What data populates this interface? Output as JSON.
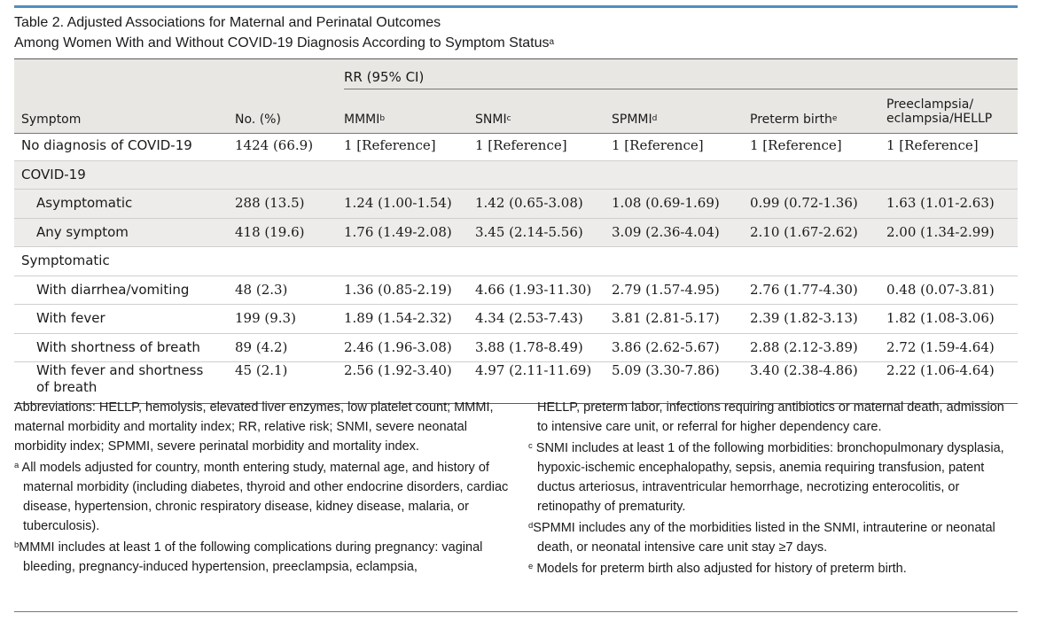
{
  "title": {
    "line1": "Table 2. Adjusted Associations for Maternal and Perinatal Outcomes",
    "line2": "Among Women With and Without COVID-19 Diagnosis According to Symptom Status",
    "line2_sup": "a"
  },
  "header": {
    "rr_label": "RR (95% CI)",
    "symptom": "Symptom",
    "no_pct": "No. (%)",
    "mmmi": "MMMI",
    "mmmi_sup": "b",
    "snmi": "SNMI",
    "snmi_sup": "c",
    "spmmi": "SPMMI",
    "spmmi_sup": "d",
    "preterm": "Preterm birth",
    "preterm_sup": "e",
    "preecl_line1": "Preeclampsia/",
    "preecl_line2": "eclampsia/HELLP"
  },
  "rows": [
    {
      "symptom": "No diagnosis of COVID-19",
      "no": "1424 (66.9)",
      "mmmi": "1 [Reference]",
      "snmi": "1 [Reference]",
      "spmmi": "1 [Reference]",
      "preterm": "1 [Reference]",
      "preecl": "1 [Reference]"
    },
    {
      "symptom": "COVID-19"
    },
    {
      "symptom": "Asymptomatic",
      "no": "288 (13.5)",
      "mmmi": "1.24 (1.00-1.54)",
      "snmi": "1.42 (0.65-3.08)",
      "spmmi": "1.08 (0.69-1.69)",
      "preterm": "0.99 (0.72-1.36)",
      "preecl": "1.63 (1.01-2.63)"
    },
    {
      "symptom": "Any symptom",
      "no": "418 (19.6)",
      "mmmi": "1.76 (1.49-2.08)",
      "snmi": "3.45 (2.14-5.56)",
      "spmmi": "3.09 (2.36-4.04)",
      "preterm": "2.10 (1.67-2.62)",
      "preecl": "2.00 (1.34-2.99)"
    },
    {
      "symptom": "Symptomatic"
    },
    {
      "symptom": "With diarrhea/vomiting",
      "no": "48 (2.3)",
      "mmmi": "1.36 (0.85-2.19)",
      "snmi": "4.66 (1.93-11.30)",
      "spmmi": "2.79 (1.57-4.95)",
      "preterm": "2.76 (1.77-4.30)",
      "preecl": "0.48 (0.07-3.81)"
    },
    {
      "symptom": "With fever",
      "no": "199 (9.3)",
      "mmmi": "1.89 (1.54-2.32)",
      "snmi": "4.34 (2.53-7.43)",
      "spmmi": "3.81 (2.81-5.17)",
      "preterm": "2.39 (1.82-3.13)",
      "preecl": "1.82 (1.08-3.06)"
    },
    {
      "symptom": "With shortness of breath",
      "no": "89 (4.2)",
      "mmmi": "2.46 (1.96-3.08)",
      "snmi": "3.88 (1.78-8.49)",
      "spmmi": "3.86 (2.62-5.67)",
      "preterm": "2.88 (2.12-3.89)",
      "preecl": "2.72 (1.59-4.64)"
    },
    {
      "symptom": "With fever and shortness of breath",
      "no": "45 (2.1)",
      "mmmi": "2.56 (1.92-3.40)",
      "snmi": "4.97 (2.11-11.69)",
      "spmmi": "5.09 (3.30-7.86)",
      "preterm": "3.40 (2.38-4.86)",
      "preecl": "2.22 (1.06-4.64)"
    }
  ],
  "notes": {
    "abbrev": "Abbreviations: HELLP, hemolysis, elevated liver enzymes, low platelet count; MMMI, maternal morbidity and mortality index; RR, relative risk; SNMI, severe neonatal morbidity index; SPMMI, severe perinatal morbidity and mortality index.",
    "a_sup": "a",
    "a": "All models adjusted for country, month entering study, maternal age, and history of maternal morbidity (including diabetes, thyroid and other endocrine disorders, cardiac disease, hypertension, chronic respiratory disease, kidney disease, malaria, or tuberculosis).",
    "b_sup": "b",
    "b": "MMMI includes at least 1 of the following complications during pregnancy: vaginal bleeding, pregnancy-induced hypertension, preeclampsia, eclampsia,",
    "b_cont": "HELLP, preterm labor, infections requiring antibiotics or maternal death, admission to intensive care unit, or referral for higher dependency care.",
    "c_sup": "c",
    "c": "SNMI includes at least 1 of the following morbidities: bronchopulmonary dysplasia, hypoxic-ischemic encephalopathy, sepsis, anemia requiring transfusion, patent ductus arteriosus, intraventricular hemorrhage, necrotizing enterocolitis, or retinopathy of prematurity.",
    "d_sup": "d",
    "d": "SPMMI includes any of the morbidities listed in the SNMI, intrauterine or neonatal death, or neonatal intensive care unit stay ≥7 days.",
    "e_sup": "e",
    "e": "Models for preterm birth also adjusted for history of preterm birth."
  }
}
